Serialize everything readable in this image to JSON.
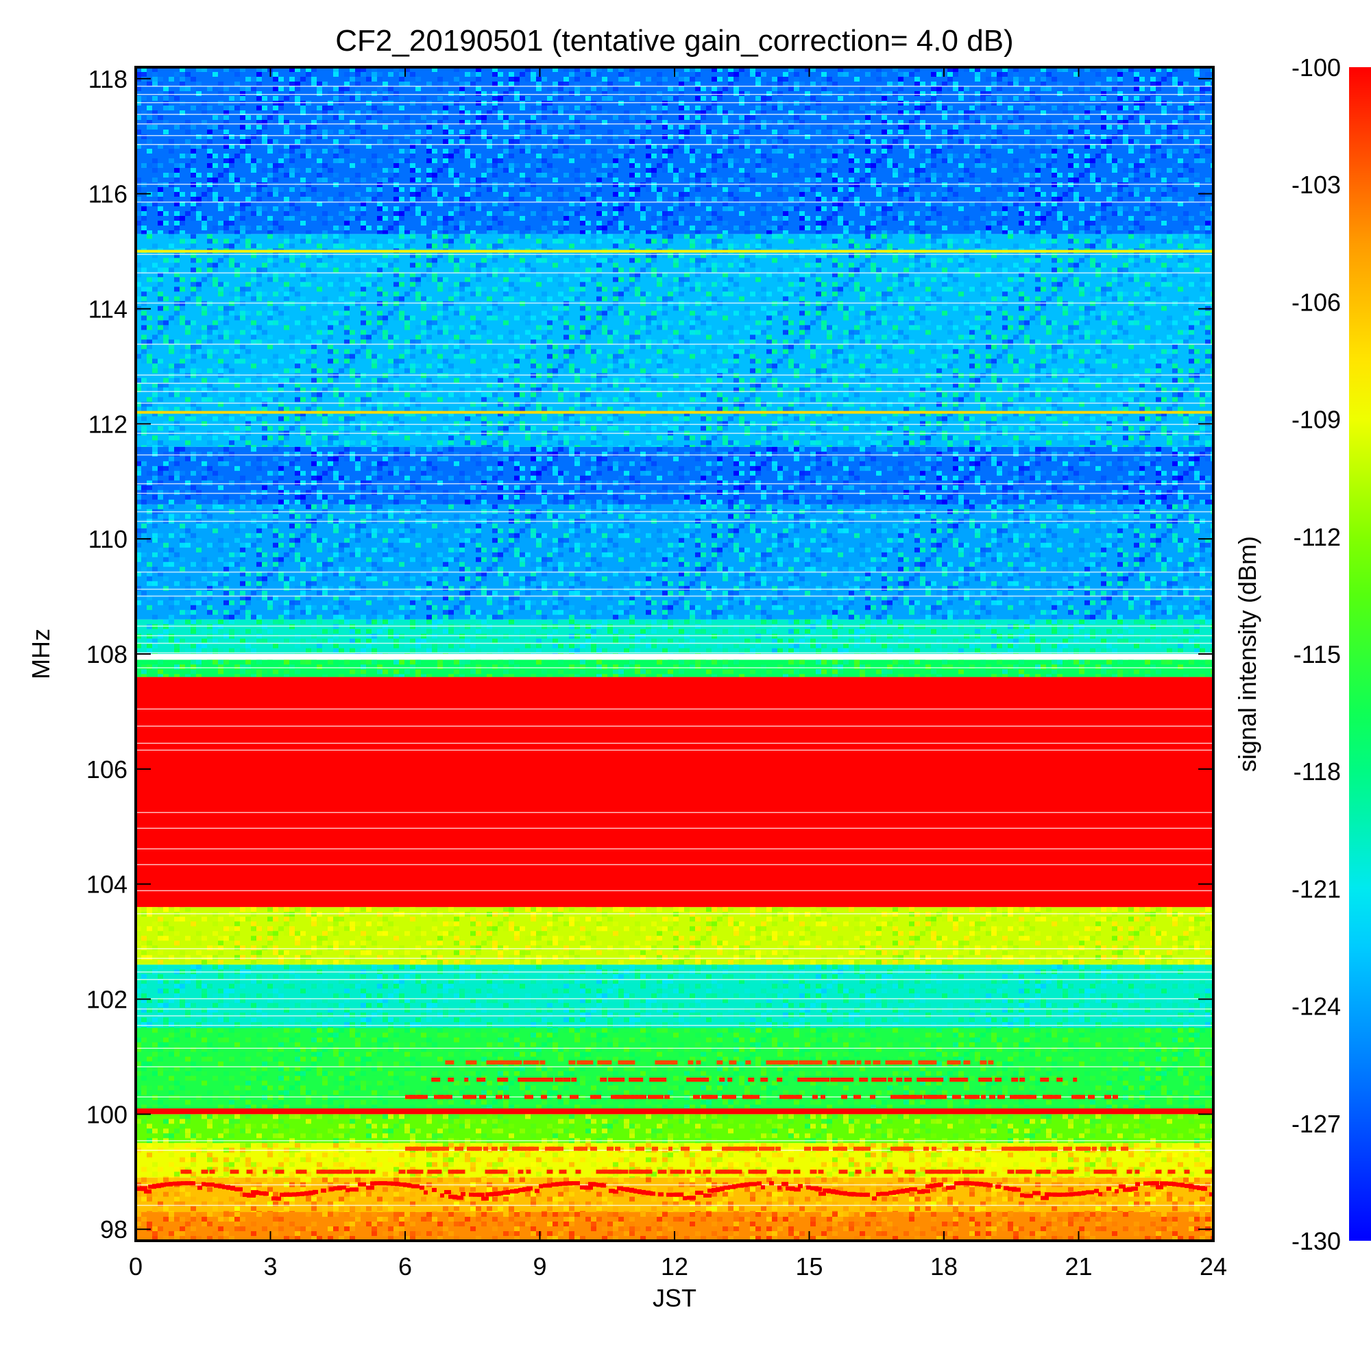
{
  "chart_data": {
    "type": "heatmap",
    "title": "CF2_20190501 (tentative gain_correction=  4.0 dB)",
    "xlabel": "JST",
    "ylabel": "MHz",
    "colorbar_label": "signal intensity (dBm)",
    "xlim": [
      0,
      24
    ],
    "ylim": [
      97.8,
      118.2
    ],
    "x_ticks": [
      0,
      3,
      6,
      9,
      12,
      15,
      18,
      21,
      24
    ],
    "x_tick_labels": [
      "0",
      "3",
      "6",
      "9",
      "12",
      "15",
      "18",
      "21",
      "24"
    ],
    "y_ticks": [
      98,
      100,
      102,
      104,
      106,
      108,
      110,
      112,
      114,
      116,
      118
    ],
    "y_tick_labels": [
      "98",
      "100",
      "102",
      "104",
      "106",
      "108",
      "110",
      "112",
      "114",
      "116",
      "118"
    ],
    "color_range": [
      -130,
      -100
    ],
    "colorbar_ticks": [
      -100,
      -103,
      -106,
      -109,
      -112,
      -115,
      -118,
      -121,
      -124,
      -127,
      -130
    ],
    "colorbar_tick_labels": [
      "-100",
      "-103",
      "-106",
      "-109",
      "-112",
      "-115",
      "-118",
      "-121",
      "-124",
      "-127",
      "-130"
    ],
    "colorscale": [
      "#0000ff",
      "#0078ff",
      "#00e6ff",
      "#00ff64",
      "#64ff00",
      "#ffff00",
      "#ff9600",
      "#ff0000"
    ],
    "frequency_bands": [
      {
        "from": 97.8,
        "to": 98.3,
        "intensity": -104,
        "noise": 1.5
      },
      {
        "from": 98.3,
        "to": 98.9,
        "intensity": -106,
        "noise": 2
      },
      {
        "from": 98.9,
        "to": 99.5,
        "intensity": -109,
        "noise": 2
      },
      {
        "from": 99.5,
        "to": 100.0,
        "intensity": -113,
        "noise": 2
      },
      {
        "from": 100.0,
        "to": 100.1,
        "intensity": -100,
        "noise": 0
      },
      {
        "from": 100.1,
        "to": 101.5,
        "intensity": -116,
        "noise": 1.5
      },
      {
        "from": 101.5,
        "to": 102.6,
        "intensity": -120,
        "noise": 1.5
      },
      {
        "from": 102.6,
        "to": 103.6,
        "intensity": -110,
        "noise": 1.5
      },
      {
        "from": 103.6,
        "to": 107.6,
        "intensity": -100,
        "noise": 0
      },
      {
        "from": 107.6,
        "to": 107.9,
        "intensity": -117,
        "noise": 2
      },
      {
        "from": 107.9,
        "to": 108.0,
        "intensity": null,
        "noise": 0
      },
      {
        "from": 108.0,
        "to": 108.6,
        "intensity": -120,
        "noise": 2
      },
      {
        "from": 108.6,
        "to": 110.6,
        "intensity": -124,
        "noise": 3
      },
      {
        "from": 110.6,
        "to": 111.6,
        "intensity": -126,
        "noise": 3
      },
      {
        "from": 111.6,
        "to": 115.3,
        "intensity": -123,
        "noise": 3
      },
      {
        "from": 115.3,
        "to": 118.2,
        "intensity": -126,
        "noise": 3
      }
    ],
    "steady_signals": [
      {
        "frequency": 112.2,
        "intensity": -107
      },
      {
        "frequency": 115.0,
        "intensity": -108
      }
    ],
    "intermittent_signals": [
      {
        "frequency": 98.8,
        "intensity": -100,
        "x_range": [
          0,
          24
        ],
        "note": "drifting carrier 98.6-98.8 MHz"
      },
      {
        "frequency": 99.0,
        "intensity": -101,
        "x_range": [
          1,
          24
        ]
      },
      {
        "frequency": 99.4,
        "intensity": -102,
        "x_range": [
          6,
          22
        ]
      },
      {
        "frequency": 100.3,
        "intensity": -101,
        "x_range": [
          6,
          22
        ]
      },
      {
        "frequency": 100.6,
        "intensity": -101,
        "x_range": [
          6.4,
          21
        ]
      },
      {
        "frequency": 100.9,
        "intensity": -102,
        "x_range": [
          6.8,
          19
        ]
      }
    ]
  }
}
